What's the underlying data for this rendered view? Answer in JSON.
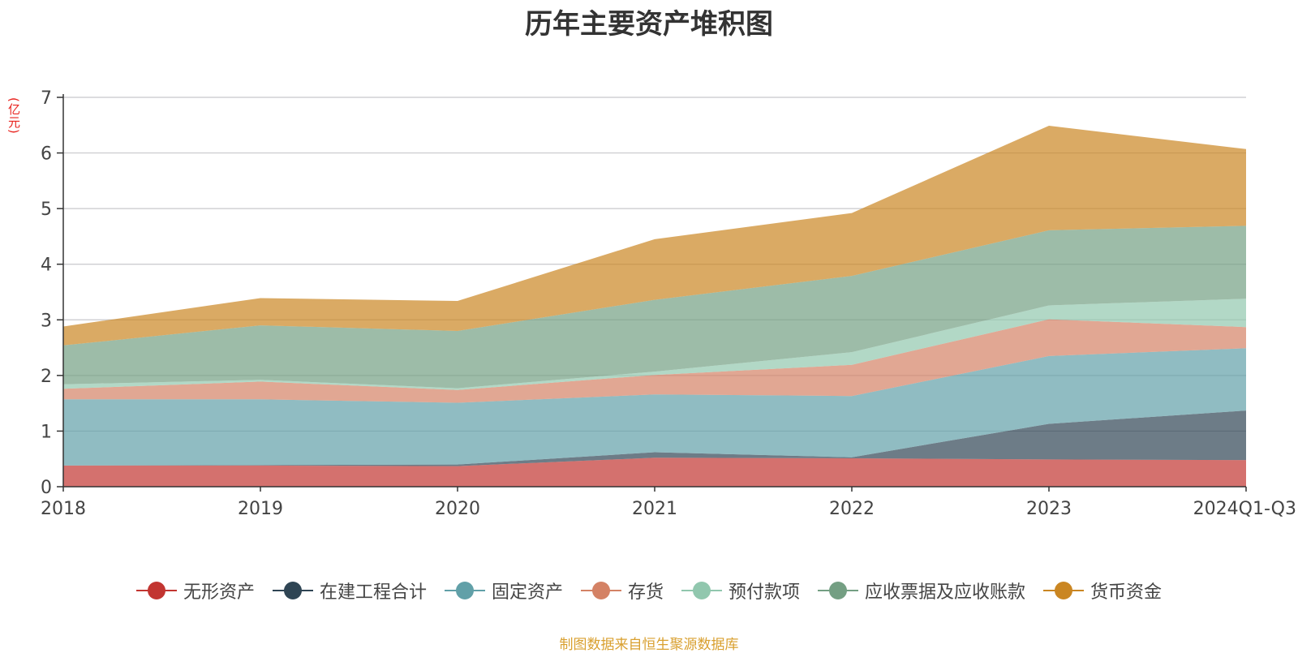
{
  "chart_data": {
    "type": "area",
    "stacked": true,
    "title": "历年主要资产堆积图",
    "y_unit": "(亿元)",
    "x": [
      "2018",
      "2019",
      "2020",
      "2021",
      "2022",
      "2023",
      "2024Q1-Q3"
    ],
    "ylim": [
      0,
      7
    ],
    "yticks": [
      0,
      1,
      2,
      3,
      4,
      5,
      6,
      7
    ],
    "grid": true,
    "legend_position": "bottom",
    "series": [
      {
        "name": "无形资产",
        "color": "#c23531",
        "values": [
          0.38,
          0.38,
          0.37,
          0.52,
          0.51,
          0.49,
          0.48
        ]
      },
      {
        "name": "在建工程合计",
        "color": "#2f4554",
        "values": [
          0.0,
          0.01,
          0.03,
          0.1,
          0.02,
          0.64,
          0.89
        ]
      },
      {
        "name": "固定资产",
        "color": "#61a0a8",
        "values": [
          1.19,
          1.18,
          1.11,
          1.04,
          1.1,
          1.22,
          1.12
        ]
      },
      {
        "name": "存货",
        "color": "#d48265",
        "values": [
          0.19,
          0.32,
          0.23,
          0.35,
          0.56,
          0.66,
          0.38
        ]
      },
      {
        "name": "预付款项",
        "color": "#91c7ae",
        "values": [
          0.08,
          0.03,
          0.03,
          0.06,
          0.23,
          0.25,
          0.51
        ]
      },
      {
        "name": "应收票据及应收账款",
        "color": "#749f83",
        "values": [
          0.7,
          0.98,
          1.03,
          1.29,
          1.37,
          1.35,
          1.31
        ]
      },
      {
        "name": "货币资金",
        "color": "#ca8622",
        "values": [
          0.34,
          0.49,
          0.54,
          1.09,
          1.13,
          1.88,
          1.38
        ]
      }
    ]
  },
  "source_note": "制图数据来自恒生聚源数据库"
}
